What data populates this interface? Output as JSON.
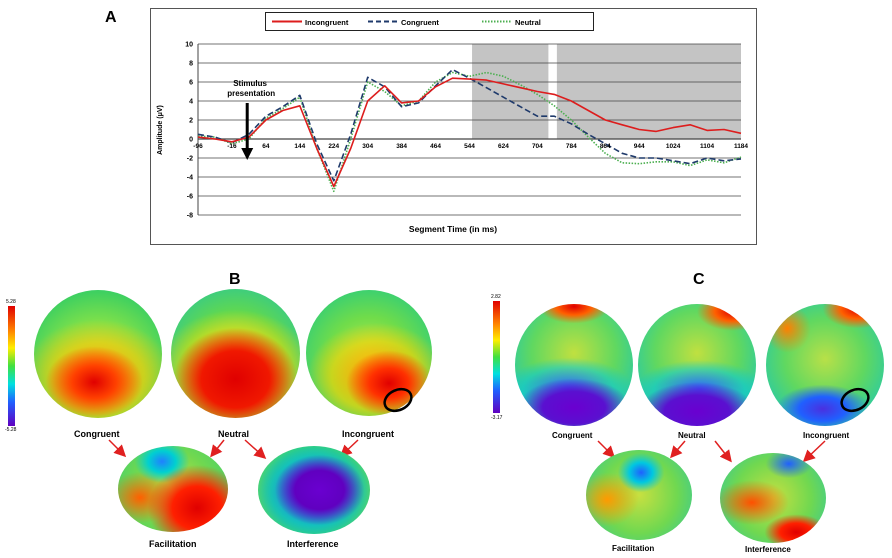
{
  "panels": {
    "a": "A",
    "b": "B",
    "c": "C"
  },
  "chart_data": {
    "type": "line",
    "title": "",
    "xlabel": "Segment Time (in ms)",
    "ylabel": "Amplitude (μV)",
    "ylim": [
      -8,
      10
    ],
    "xlim": [
      -96,
      1184
    ],
    "yticks": [
      -8,
      -6,
      -4,
      -2,
      0,
      2,
      4,
      6,
      8,
      10
    ],
    "xticks": [
      -96,
      -16,
      64,
      144,
      224,
      304,
      384,
      464,
      544,
      624,
      704,
      784,
      864,
      944,
      1024,
      1104,
      1184
    ],
    "grid": true,
    "legend_position": "top",
    "annotation": "Stimulus presentation",
    "annotation_x": 20,
    "shaded_regions": [
      [
        550,
        730
      ],
      [
        750,
        1184
      ]
    ],
    "x": [
      -96,
      -56,
      -16,
      24,
      64,
      104,
      144,
      184,
      224,
      264,
      304,
      344,
      384,
      424,
      464,
      504,
      544,
      584,
      624,
      664,
      704,
      744,
      784,
      824,
      864,
      904,
      944,
      984,
      1024,
      1064,
      1104,
      1144,
      1184
    ],
    "series": [
      {
        "name": "Incongruent",
        "color": "#dd1d1d",
        "dash": "solid",
        "values": [
          0.2,
          0,
          -0.3,
          0.2,
          2,
          3,
          3.5,
          -1,
          -5,
          -1,
          4,
          5.6,
          3.8,
          4,
          5.5,
          6.4,
          6.3,
          6.2,
          5.8,
          5.4,
          5,
          4.7,
          4,
          3,
          2,
          1.5,
          1,
          0.8,
          1.2,
          1.5,
          0.9,
          1,
          0.6
        ]
      },
      {
        "name": "Congruent",
        "color": "#1f3a6b",
        "dash": "dashed",
        "values": [
          0.5,
          0.2,
          -0.4,
          0.5,
          2.4,
          3.4,
          4.6,
          -0.5,
          -4.4,
          0.5,
          6.5,
          5.5,
          3.4,
          3.8,
          5.6,
          7.3,
          6.4,
          5.4,
          4.4,
          3.4,
          2.4,
          2.4,
          1.6,
          0.5,
          -0.5,
          -1.5,
          -2,
          -2,
          -2.3,
          -2.6,
          -2,
          -2.3,
          -2.1
        ]
      },
      {
        "name": "Neutral",
        "color": "#4caf50",
        "dash": "dotted",
        "values": [
          0.3,
          0.2,
          -0.5,
          0,
          2.2,
          3.2,
          4.4,
          -1,
          -5.5,
          0,
          6,
          5,
          3.5,
          4,
          6,
          7,
          6.6,
          7,
          6.6,
          5.7,
          4.7,
          3.5,
          2,
          0.2,
          -1.5,
          -2.5,
          -2.6,
          -2.4,
          -2.4,
          -2.8,
          -2.2,
          -2.5,
          -1.9
        ]
      }
    ]
  },
  "panel_b": {
    "scale_max": "5.28",
    "scale_min": "-5.28",
    "top_labels": [
      "Congruent",
      "Neutral",
      "Incongruent"
    ],
    "bottom_labels": [
      "Facilitation",
      "Interference"
    ]
  },
  "panel_c": {
    "scale_max": "2.82",
    "scale_min": "-3.17",
    "top_labels": [
      "Congruent",
      "Neutral",
      "Incongruent"
    ],
    "bottom_labels": [
      "Facilitation",
      "Interference"
    ]
  }
}
